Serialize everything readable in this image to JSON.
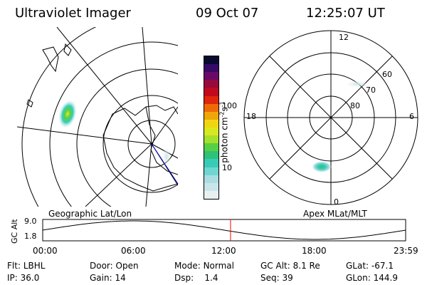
{
  "header": {
    "instrument": "Ultraviolet Imager",
    "date": "09 Oct 07",
    "time": "12:25:07 UT"
  },
  "colorbar": {
    "unit_label": "photon cm-2s-1",
    "ticks": [
      "100",
      "10"
    ],
    "colors": [
      "#e8f0f0",
      "#c8e6ea",
      "#a9dde2",
      "#6fd6d2",
      "#38ccb8",
      "#2ec27a",
      "#58d044",
      "#a5e02c",
      "#d8e81e",
      "#f0d612",
      "#f0a60a",
      "#ee6a08",
      "#e0260c",
      "#c20a1e",
      "#960a3e",
      "#6a0a66",
      "#360a66",
      "#0a0a30"
    ]
  },
  "left_map": {
    "label": "Geographic Lat/Lon"
  },
  "right_map": {
    "label": "Apex MLat/MLT",
    "mlt_labels": {
      "top": "12",
      "left": "18",
      "right": "6",
      "bottom": "0"
    },
    "lat_labels": [
      "60",
      "70",
      "80"
    ]
  },
  "altitude_plot": {
    "ylabel": "GC Alt",
    "yticks": [
      "9.0",
      "1.8"
    ],
    "xticks": [
      "00:00",
      "06:00",
      "12:00",
      "18:00",
      "23:59"
    ],
    "current_time_hours": 12.42,
    "marker_color": "#ff0000"
  },
  "status": {
    "filter_label": "Flt:",
    "filter_value": "LBHL",
    "door_label": "Door:",
    "door_value": "Open",
    "mode_label": "Mode:",
    "mode_value": "Normal",
    "gc_alt_label": "GC Alt:",
    "gc_alt_value": "8.1 Re",
    "glat_label": "GLat:",
    "glat_value": "-67.1",
    "ip_label": "IP:",
    "ip_value": "36.0",
    "gain_label": "Gain:",
    "gain_value": "14",
    "dsp_label": "Dsp:",
    "dsp_value": "1.4",
    "seq_label": "Seq:",
    "seq_value": "39",
    "glon_label": "GLon:",
    "glon_value": "144.9"
  }
}
